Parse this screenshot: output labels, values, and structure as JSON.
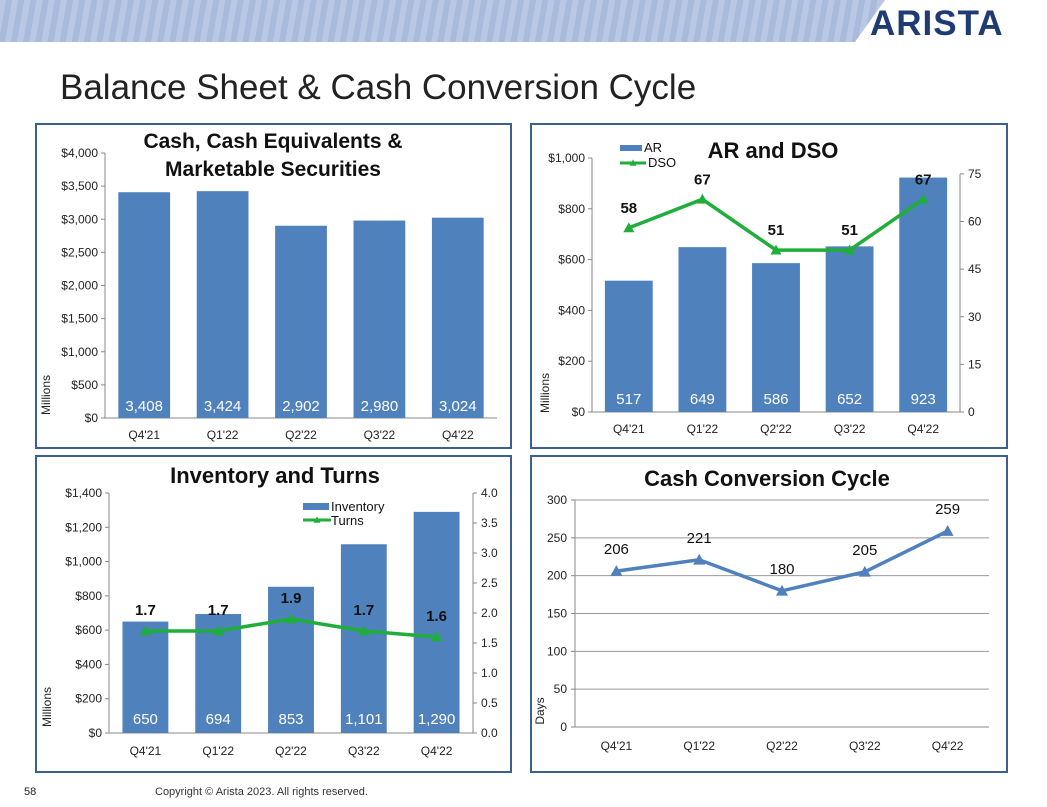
{
  "logo": "ARISTA",
  "page_title": "Balance Sheet & Cash Conversion Cycle",
  "footer": {
    "page_number": "58",
    "copyright": "Copyright © Arista 2023. All rights reserved."
  },
  "colors": {
    "bar": "#4f81bd",
    "line_green": "#1fae3a",
    "line_blue": "#4f81bd",
    "border": "#3b5f8e"
  },
  "chart_data": [
    {
      "id": "cash",
      "type": "bar",
      "title": [
        "Cash, Cash Equivalents &",
        "Marketable Securities"
      ],
      "categories": [
        "Q4'21",
        "Q1'22",
        "Q2'22",
        "Q3'22",
        "Q4'22"
      ],
      "values": [
        3408,
        3424,
        2902,
        2980,
        3024
      ],
      "value_labels": [
        "3,408",
        "3,424",
        "2,902",
        "2,980",
        "3,024"
      ],
      "ylabel": "Millions",
      "ylim": [
        0,
        4000
      ],
      "yticks": [
        "$0",
        "$500",
        "$1,000",
        "$1,500",
        "$2,000",
        "$2,500",
        "$3,000",
        "$3,500",
        "$4,000"
      ],
      "grid": false
    },
    {
      "id": "ar",
      "type": "bar+line",
      "title": "AR and DSO",
      "categories": [
        "Q4'21",
        "Q1'22",
        "Q2'22",
        "Q3'22",
        "Q4'22"
      ],
      "series": [
        {
          "name": "AR",
          "type": "bar",
          "axis": "left",
          "values": [
            517,
            649,
            586,
            652,
            923
          ],
          "labels": [
            "517",
            "649",
            "586",
            "652",
            "923"
          ]
        },
        {
          "name": "DSO",
          "type": "line",
          "axis": "right",
          "values": [
            58,
            67,
            51,
            51,
            67
          ],
          "labels": [
            "58",
            "67",
            "51",
            "51",
            "67"
          ]
        }
      ],
      "ylabel": "Millions",
      "ylim": [
        0,
        1000
      ],
      "yticks": [
        "$0",
        "$200",
        "$400",
        "$600",
        "$800",
        "$1,000"
      ],
      "y2lim": [
        0,
        80
      ],
      "y2ticks": [
        "0",
        "15",
        "30",
        "45",
        "60",
        "75"
      ],
      "legend": "top-left"
    },
    {
      "id": "inv",
      "type": "bar+line",
      "title": "Inventory and Turns",
      "categories": [
        "Q4'21",
        "Q1'22",
        "Q2'22",
        "Q3'22",
        "Q4'22"
      ],
      "series": [
        {
          "name": "Inventory",
          "type": "bar",
          "axis": "left",
          "values": [
            650,
            694,
            853,
            1101,
            1290
          ],
          "labels": [
            "650",
            "694",
            "853",
            "1,101",
            "1,290"
          ]
        },
        {
          "name": "Turns",
          "type": "line",
          "axis": "right",
          "values": [
            1.7,
            1.7,
            1.9,
            1.7,
            1.6
          ],
          "labels": [
            "1.7",
            "1.7",
            "1.9",
            "1.7",
            "1.6"
          ]
        }
      ],
      "ylabel": "Millions",
      "ylim": [
        0,
        1400
      ],
      "yticks": [
        "$0",
        "$200",
        "$400",
        "$600",
        "$800",
        "$1,000",
        "$1,200",
        "$1,400"
      ],
      "y2lim": [
        0,
        4
      ],
      "y2ticks": [
        "0.0",
        "0.5",
        "1.0",
        "1.5",
        "2.0",
        "2.5",
        "3.0",
        "3.5",
        "4.0"
      ],
      "legend": "top-right"
    },
    {
      "id": "ccc",
      "type": "line",
      "title": "Cash Conversion Cycle",
      "categories": [
        "Q4'21",
        "Q1'22",
        "Q2'22",
        "Q3'22",
        "Q4'22"
      ],
      "values": [
        206,
        221,
        180,
        205,
        259
      ],
      "labels": [
        "206",
        "221",
        "180",
        "205",
        "259"
      ],
      "ylabel": "Days",
      "ylim": [
        0,
        300
      ],
      "yticks": [
        "0",
        "50",
        "100",
        "150",
        "200",
        "250",
        "300"
      ],
      "grid": true
    }
  ]
}
